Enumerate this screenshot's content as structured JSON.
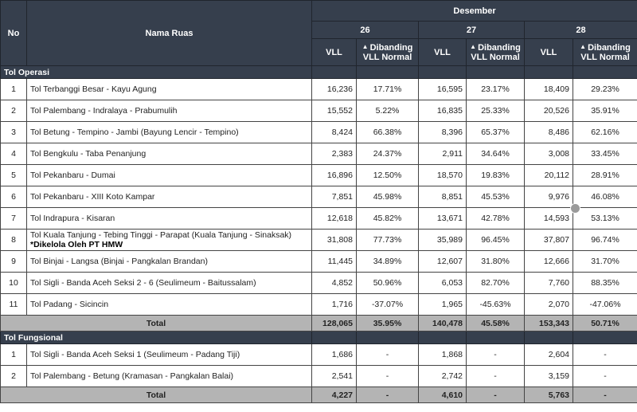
{
  "header": {
    "no": "No",
    "nama": "Nama Ruas",
    "month": "Desember",
    "days": [
      "26",
      "27",
      "28"
    ],
    "vll": "VLL",
    "dibanding_line1": "Dibanding",
    "dibanding_line2": "VLL Normal",
    "arrow_icon": "arrow-up-icon"
  },
  "sections": [
    {
      "title": "Tol Operasi",
      "rows": [
        {
          "no": "1",
          "nama": "Tol Terbanggi Besar - Kayu Agung",
          "vals": [
            "16,236",
            "17.71%",
            "16,595",
            "23.17%",
            "18,409",
            "29.23%"
          ]
        },
        {
          "no": "2",
          "nama": "Tol Palembang - Indralaya - Prabumulih",
          "vals": [
            "15,552",
            "5.22%",
            "16,835",
            "25.33%",
            "20,526",
            "35.91%"
          ]
        },
        {
          "no": "3",
          "nama": "Tol Betung - Tempino - Jambi (Bayung Lencir - Tempino)",
          "vals": [
            "8,424",
            "66.38%",
            "8,396",
            "65.37%",
            "8,486",
            "62.16%"
          ]
        },
        {
          "no": "4",
          "nama": "Tol Bengkulu - Taba Penanjung",
          "vals": [
            "2,383",
            "24.37%",
            "2,911",
            "34.64%",
            "3,008",
            "33.45%"
          ]
        },
        {
          "no": "5",
          "nama": "Tol Pekanbaru - Dumai",
          "vals": [
            "16,896",
            "12.50%",
            "18,570",
            "19.83%",
            "20,112",
            "28.91%"
          ]
        },
        {
          "no": "6",
          "nama": "Tol Pekanbaru  - XIII Koto Kampar",
          "vals": [
            "7,851",
            "45.98%",
            "8,851",
            "45.53%",
            "9,976",
            "46.08%"
          ]
        },
        {
          "no": "7",
          "nama": "Tol Indrapura - Kisaran",
          "vals": [
            "12,618",
            "45.82%",
            "13,671",
            "42.78%",
            "14,593",
            "53.13%"
          ]
        },
        {
          "no": "8",
          "nama": "Tol Kuala Tanjung - Tebing Tinggi - Parapat (Kuala Tanjung - Sinaksak)",
          "note": "*Dikelola Oleh PT HMW",
          "vals": [
            "31,808",
            "77.73%",
            "35,989",
            "96.45%",
            "37,807",
            "96.74%"
          ]
        },
        {
          "no": "9",
          "nama": "Tol Binjai - Langsa (Binjai - Pangkalan Brandan)",
          "vals": [
            "11,445",
            "34.89%",
            "12,607",
            "31.80%",
            "12,666",
            "31.70%"
          ]
        },
        {
          "no": "10",
          "nama": "Tol Sigli - Banda Aceh Seksi 2 - 6 (Seulimeum - Baitussalam)",
          "vals": [
            "4,852",
            "50.96%",
            "6,053",
            "82.70%",
            "7,760",
            "88.35%"
          ]
        },
        {
          "no": "11",
          "nama": "Tol Padang - Sicincin",
          "vals": [
            "1,716",
            "-37.07%",
            "1,965",
            "-45.63%",
            "2,070",
            "-47.06%"
          ]
        }
      ],
      "total": {
        "label": "Total",
        "vals": [
          "128,065",
          "35.95%",
          "140,478",
          "45.58%",
          "153,343",
          "50.71%"
        ]
      }
    },
    {
      "title": "Tol Fungsional",
      "rows": [
        {
          "no": "1",
          "nama": "Tol Sigli - Banda Aceh Seksi 1 (Seulimeum - Padang Tiji)",
          "vals": [
            "1,686",
            "-",
            "1,868",
            "-",
            "2,604",
            "-"
          ]
        },
        {
          "no": "2",
          "nama": "Tol Palembang - Betung (Kramasan - Pangkalan Balai)",
          "vals": [
            "2,541",
            "-",
            "2,742",
            "-",
            "3,159",
            "-"
          ]
        }
      ],
      "total": {
        "label": "Total",
        "vals": [
          "4,227",
          "-",
          "4,610",
          "-",
          "5,763",
          "-"
        ]
      }
    }
  ],
  "colors": {
    "header": "#363f4d",
    "total": "#b4b4b4"
  }
}
